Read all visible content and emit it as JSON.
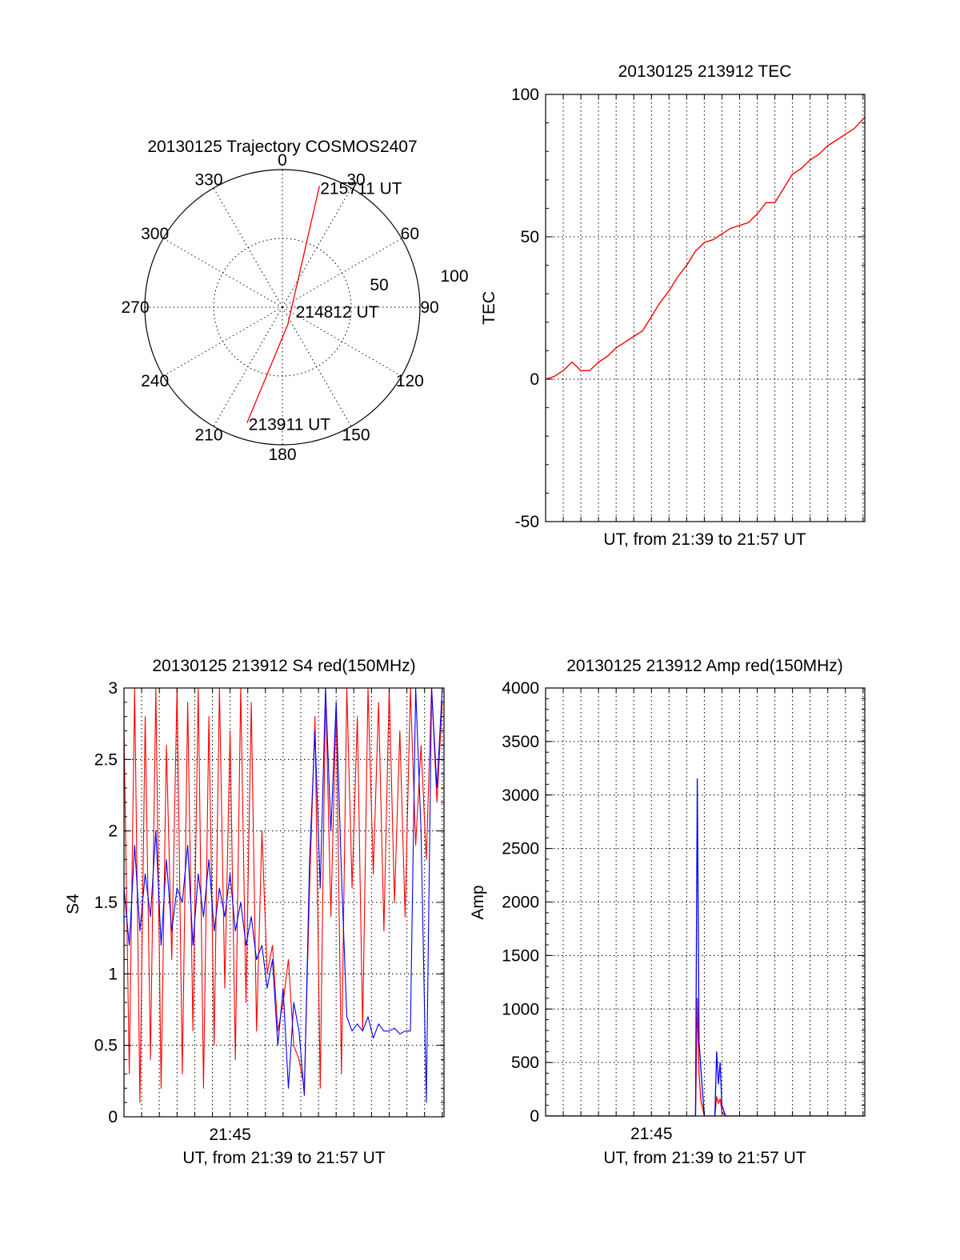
{
  "colors": {
    "red_series": "#ff0000",
    "blue_series": "#0000ff",
    "axes": "#000000"
  },
  "chart_data": [
    {
      "id": "polar",
      "type": "polar",
      "title": "20130125 Trajectory COSMOS2407",
      "angle_labels": [
        "0",
        "30",
        "60",
        "90",
        "120",
        "150",
        "180",
        "210",
        "240",
        "270",
        "300",
        "330"
      ],
      "radius_labels": [
        "50",
        "100"
      ],
      "radius_max": 100,
      "grid": true,
      "track": {
        "color": "#ff0000",
        "points": [
          {
            "az": 17,
            "r": 92
          },
          {
            "az": 162,
            "r": 13
          },
          {
            "az": 197,
            "r": 88
          }
        ]
      },
      "annotations": [
        {
          "text": "215711 UT",
          "az": 17,
          "r": 92
        },
        {
          "text": "214812 UT",
          "az": 90,
          "r": 5
        },
        {
          "text": "213911 UT",
          "az": 197,
          "r": 88
        }
      ]
    },
    {
      "id": "tec",
      "type": "line",
      "title": "20130125 213912 TEC",
      "xlabel": "UT, from 21:39 to 21:57 UT",
      "ylabel": "TEC",
      "xlim": [
        0,
        18.1
      ],
      "ylim": [
        -50,
        100
      ],
      "yticks": [
        "-50",
        "0",
        "50",
        "100"
      ],
      "xtick_labels": [],
      "grid": true,
      "series": [
        {
          "color": "#ff0000",
          "x": [
            0,
            0.5,
            1.0,
            1.5,
            2.0,
            2.5,
            3.0,
            3.5,
            4.0,
            4.5,
            5.0,
            5.5,
            6.0,
            6.5,
            7.0,
            7.5,
            8.0,
            8.5,
            9.0,
            9.5,
            10.0,
            10.5,
            11.0,
            11.5,
            12.0,
            12.5,
            13.0,
            13.5,
            14.0,
            14.5,
            15.0,
            15.5,
            16.0,
            16.5,
            17.0,
            17.5,
            18.1
          ],
          "y": [
            0,
            1,
            3,
            6,
            3,
            3,
            6,
            8,
            11,
            13,
            15,
            17,
            22,
            27,
            31,
            36,
            40,
            45,
            48,
            49,
            51,
            53,
            54,
            55,
            58,
            62,
            62,
            67,
            72,
            74,
            77,
            79,
            82,
            84,
            86,
            88,
            92
          ]
        }
      ]
    },
    {
      "id": "s4",
      "type": "line",
      "title": "20130125 213912 S4 red(150MHz)",
      "xlabel": "UT, from 21:39 to 21:57 UT",
      "ylabel": "S4",
      "xlim": [
        0,
        18.1
      ],
      "ylim": [
        0,
        3
      ],
      "yticks": [
        "0",
        "0.5",
        "1",
        "1.5",
        "2",
        "2.5",
        "3"
      ],
      "xtick_labels": [
        {
          "x": 6,
          "label": "21:45"
        }
      ],
      "grid": true,
      "series": [
        {
          "color": "#ff0000",
          "x": [
            0.0,
            0.3,
            0.6,
            0.9,
            1.2,
            1.5,
            1.8,
            2.1,
            2.4,
            2.7,
            3.0,
            3.3,
            3.6,
            3.9,
            4.2,
            4.5,
            4.8,
            5.1,
            5.4,
            5.7,
            6.0,
            6.3,
            6.6,
            6.9,
            7.2,
            7.5,
            7.8,
            8.1,
            8.4,
            8.7,
            9.0,
            9.3,
            9.6,
            9.9,
            10.2,
            10.5,
            10.8,
            11.1,
            11.4,
            11.7,
            12.0,
            12.3,
            12.6,
            12.9,
            13.2,
            13.5,
            13.8,
            14.1,
            14.4,
            14.7,
            15.0,
            15.3,
            15.6,
            15.9,
            16.2,
            16.5,
            16.8,
            17.1,
            17.4,
            17.7,
            18.0
          ],
          "y": [
            2.7,
            0.3,
            3.0,
            0.1,
            2.8,
            0.4,
            3.0,
            0.2,
            2.6,
            1.1,
            3.0,
            0.3,
            2.9,
            0.6,
            3.0,
            0.2,
            2.8,
            0.5,
            3.0,
            0.9,
            2.7,
            0.4,
            3.0,
            0.8,
            2.9,
            0.6,
            2.0,
            1.0,
            1.2,
            0.6,
            0.8,
            1.1,
            0.5,
            0.4,
            0.2,
            1.6,
            2.8,
            0.2,
            3.0,
            1.4,
            2.9,
            0.3,
            3.0,
            1.6,
            2.8,
            0.6,
            3.0,
            1.7,
            2.9,
            1.3,
            3.0,
            1.5,
            2.7,
            1.4,
            3.0,
            1.9,
            2.6,
            1.8,
            3.0,
            2.2,
            2.9
          ]
        },
        {
          "color": "#0000ff",
          "x": [
            0.0,
            0.3,
            0.6,
            0.9,
            1.2,
            1.5,
            1.8,
            2.1,
            2.4,
            2.7,
            3.0,
            3.3,
            3.6,
            3.9,
            4.2,
            4.5,
            4.8,
            5.1,
            5.4,
            5.7,
            6.0,
            6.3,
            6.6,
            6.9,
            7.2,
            7.5,
            7.8,
            8.1,
            8.4,
            8.7,
            9.0,
            9.3,
            9.6,
            9.9,
            10.2,
            10.5,
            10.8,
            11.1,
            11.4,
            11.7,
            12.0,
            12.3,
            12.6,
            12.9,
            13.2,
            13.5,
            13.8,
            14.1,
            14.4,
            14.7,
            15.0,
            15.3,
            15.6,
            15.9,
            16.2,
            16.5,
            16.8,
            17.1,
            17.4,
            17.7,
            18.0
          ],
          "y": [
            1.6,
            1.2,
            1.9,
            1.3,
            1.7,
            1.4,
            2.0,
            1.2,
            1.8,
            1.3,
            1.6,
            1.5,
            1.9,
            1.2,
            1.7,
            1.4,
            1.8,
            1.3,
            1.6,
            1.4,
            1.7,
            1.3,
            1.5,
            1.2,
            1.4,
            1.1,
            1.2,
            0.9,
            1.1,
            0.5,
            0.9,
            0.2,
            0.8,
            0.6,
            0.15,
            1.8,
            2.7,
            1.6,
            3.0,
            2.0,
            2.9,
            1.7,
            0.7,
            0.6,
            0.65,
            0.6,
            0.7,
            0.55,
            0.65,
            0.6,
            0.6,
            0.62,
            0.58,
            0.6,
            0.6,
            3.0,
            2.0,
            0.1,
            3.0,
            2.3,
            3.0
          ]
        }
      ]
    },
    {
      "id": "amp",
      "type": "line",
      "title": "20130125 213912 Amp red(150MHz)",
      "xlabel": "UT, from 21:39 to 21:57 UT",
      "ylabel": "Amp",
      "xlim": [
        0,
        18.1
      ],
      "ylim": [
        0,
        4000
      ],
      "yticks": [
        "0",
        "500",
        "1000",
        "1500",
        "2000",
        "2500",
        "3000",
        "3500",
        "4000"
      ],
      "xtick_labels": [
        {
          "x": 6,
          "label": "21:45"
        }
      ],
      "grid": true,
      "series": [
        {
          "color": "#ff0000",
          "x": [
            0,
            8.2,
            8.5,
            8.6,
            8.7,
            8.8,
            9.0,
            9.6,
            9.7,
            9.8,
            9.9,
            10.0,
            10.2,
            18.1
          ],
          "y": [
            0,
            0,
            0,
            1100,
            400,
            150,
            0,
            0,
            180,
            120,
            160,
            40,
            0,
            0
          ]
        },
        {
          "color": "#0000ff",
          "x": [
            0,
            8.2,
            8.5,
            8.6,
            8.7,
            8.8,
            9.0,
            9.6,
            9.7,
            9.8,
            9.9,
            10.0,
            10.2,
            18.1
          ],
          "y": [
            0,
            0,
            0,
            3150,
            700,
            450,
            0,
            0,
            600,
            300,
            500,
            100,
            0,
            0
          ]
        }
      ]
    }
  ]
}
